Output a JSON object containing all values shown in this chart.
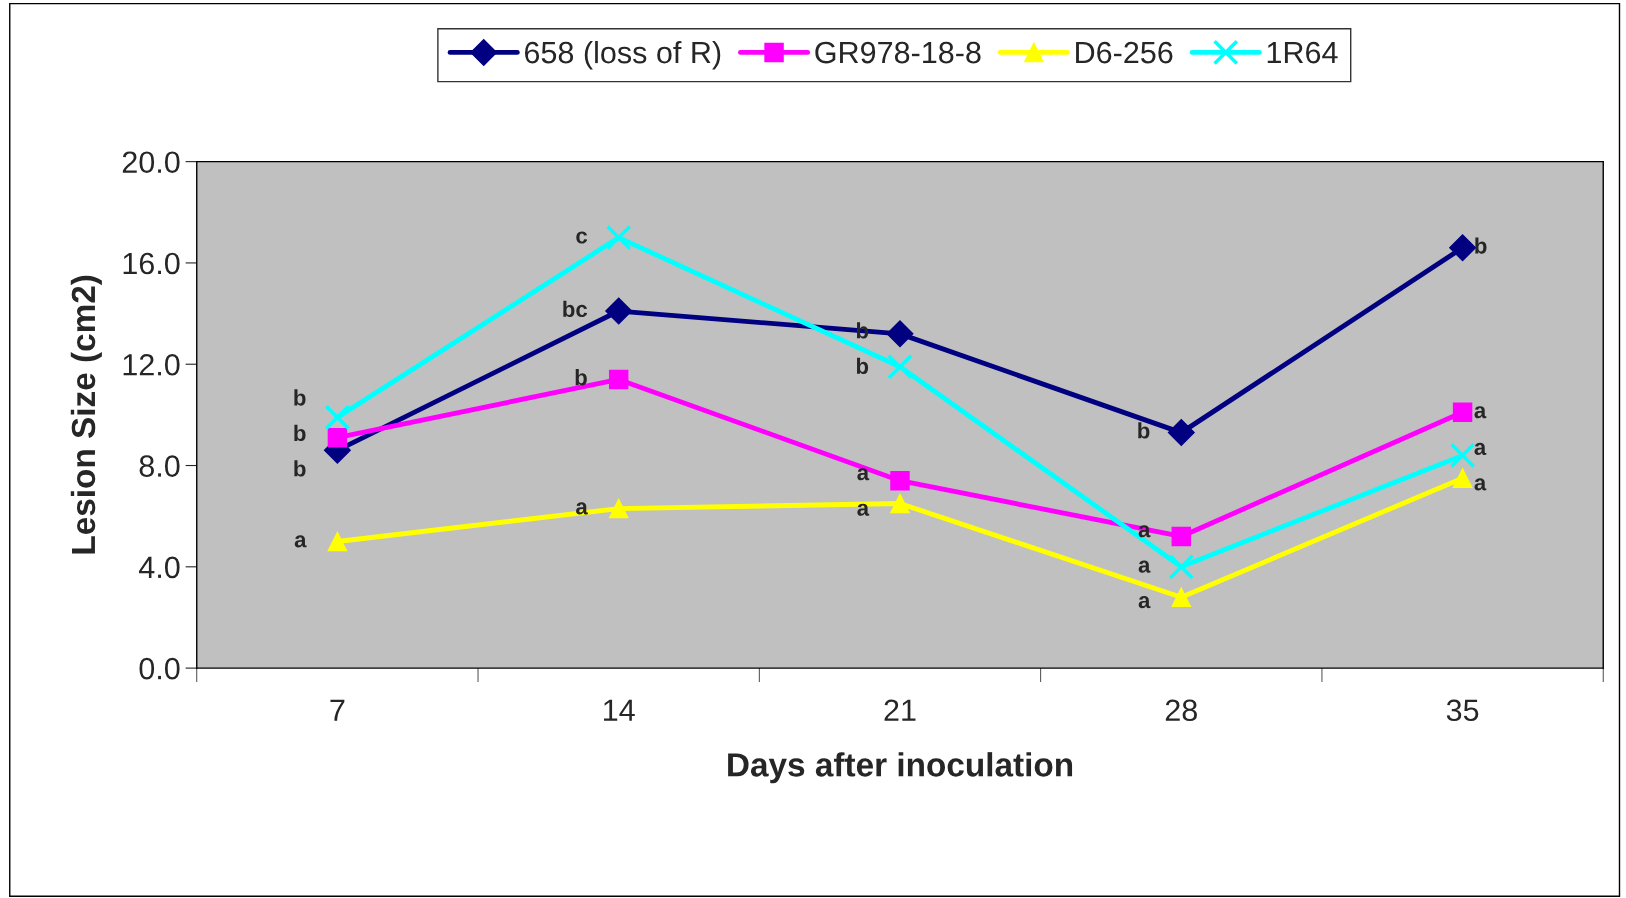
{
  "chart_data": {
    "type": "line",
    "xlabel": "Days after inoculation",
    "ylabel": "Lesion Size (cm2)",
    "categories": [
      "7",
      "14",
      "21",
      "28",
      "35"
    ],
    "series": [
      {
        "name": "658 (loss of R)",
        "color": "#000080",
        "marker": "diamond",
        "values": [
          8.6,
          14.1,
          13.2,
          9.3,
          16.6
        ]
      },
      {
        "name": "GR978-18-8",
        "color": "#ff00ff",
        "marker": "square",
        "values": [
          9.1,
          11.4,
          7.4,
          5.2,
          10.1
        ]
      },
      {
        "name": "D6-256",
        "color": "#ffff00",
        "marker": "triangle",
        "values": [
          5.0,
          6.3,
          6.5,
          2.8,
          7.5
        ]
      },
      {
        "name": "1R64",
        "color": "#00ffff",
        "marker": "cross",
        "values": [
          9.9,
          17.0,
          11.9,
          4.0,
          8.4
        ]
      }
    ],
    "ylim": [
      0,
      20
    ],
    "yticks": [
      {
        "value": 0,
        "label": "0.0"
      },
      {
        "value": 4,
        "label": "4.0"
      },
      {
        "value": 8,
        "label": "8.0"
      },
      {
        "value": 12,
        "label": "12.0"
      },
      {
        "value": 16,
        "label": "16.0"
      },
      {
        "value": 20,
        "label": "20.0"
      }
    ],
    "grid": false,
    "legend": "top",
    "line_style": "solid",
    "annotations": [
      {
        "text": "b",
        "x": "7",
        "y": 9.9
      },
      {
        "text": "b",
        "x": "7",
        "y": 9.1
      },
      {
        "text": "b",
        "x": "7",
        "y": 8.6
      },
      {
        "text": "a",
        "x": "7",
        "y": 5.0
      },
      {
        "text": "c",
        "x": "14",
        "y": 17.0
      },
      {
        "text": "bc",
        "x": "14",
        "y": 14.1
      },
      {
        "text": "b",
        "x": "14",
        "y": 11.4
      },
      {
        "text": "a",
        "x": "14",
        "y": 6.3
      },
      {
        "text": "b",
        "x": "21",
        "y": 13.2
      },
      {
        "text": "b",
        "x": "21",
        "y": 11.9
      },
      {
        "text": "a",
        "x": "21",
        "y": 7.4
      },
      {
        "text": "a",
        "x": "21",
        "y": 6.5
      },
      {
        "text": "b",
        "x": "28",
        "y": 9.3
      },
      {
        "text": "a",
        "x": "28",
        "y": 5.2
      },
      {
        "text": "a",
        "x": "28",
        "y": 4.0
      },
      {
        "text": "a",
        "x": "28",
        "y": 2.8
      },
      {
        "text": "b",
        "x": "35",
        "y": 16.6
      },
      {
        "text": "a",
        "x": "35",
        "y": 10.1
      },
      {
        "text": "a",
        "x": "35",
        "y": 8.4
      },
      {
        "text": "a",
        "x": "35",
        "y": 7.5
      }
    ]
  }
}
